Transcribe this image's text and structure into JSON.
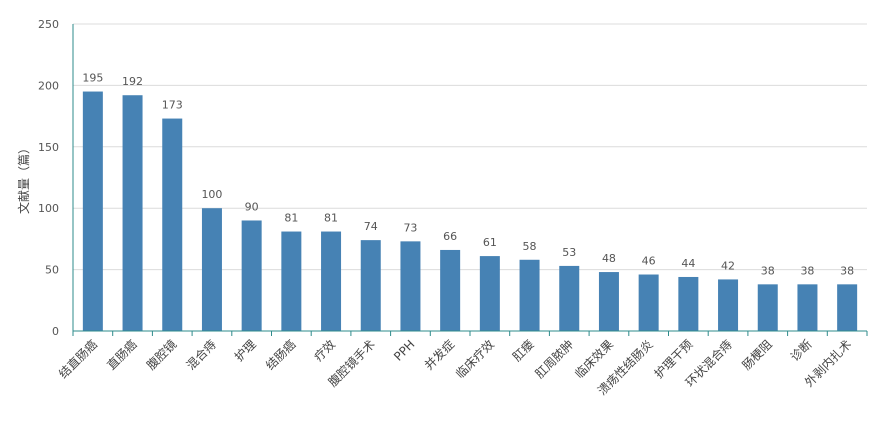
{
  "chart_data": {
    "type": "bar",
    "title": "",
    "xlabel": "",
    "ylabel": "文献量（篇）",
    "ylim": [
      0,
      250
    ],
    "yticks": [
      0,
      50,
      100,
      150,
      200,
      250
    ],
    "grid": true,
    "legend": "none",
    "bar_color": "#4682b4",
    "axis_color": "#2e8b8b",
    "grid_color": "#dcdcdc",
    "categories": [
      "结直肠癌",
      "直肠癌",
      "腹腔镜",
      "混合痔",
      "护理",
      "结肠癌",
      "疗效",
      "腹腔镜手术",
      "PPH",
      "并发症",
      "临床疗效",
      "肛瘘",
      "肛周脓肿",
      "临床效果",
      "溃疡性结肠炎",
      "护理干预",
      "环状混合痔",
      "肠梗阻",
      "诊断",
      "外剥内扎术"
    ],
    "values": [
      195,
      192,
      173,
      100,
      90,
      81,
      81,
      74,
      73,
      66,
      61,
      58,
      53,
      48,
      46,
      44,
      42,
      38,
      38,
      38
    ]
  }
}
